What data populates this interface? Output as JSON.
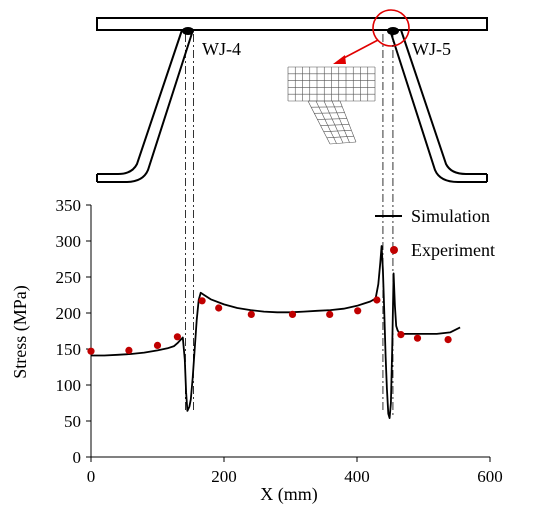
{
  "figure": {
    "welds": [
      {
        "id": "wj4",
        "label": "WJ-4",
        "x_mm": 142
      },
      {
        "id": "wj5",
        "label": "WJ-5",
        "x_mm": 439
      }
    ],
    "colors": {
      "line": "#000000",
      "experiment": "#c00000",
      "highlight": "#e00000",
      "structure": "#000000"
    }
  },
  "chart_data": {
    "type": "line",
    "xlabel": "X (mm)",
    "ylabel": "Stress (MPa)",
    "xlim": [
      0,
      600
    ],
    "ylim": [
      0,
      350
    ],
    "xticks": [
      "0",
      "200",
      "400",
      "600"
    ],
    "yticks": [
      "0",
      "50",
      "100",
      "150",
      "200",
      "250",
      "300",
      "350"
    ],
    "legend_position": "top-right",
    "grid": false,
    "series": [
      {
        "name": "Simulation",
        "style": "line",
        "x": [
          0,
          20,
          40,
          60,
          80,
          100,
          115,
          125,
          130,
          134,
          138,
          141,
          143,
          145,
          148,
          150,
          153,
          156,
          159,
          162,
          165,
          170,
          180,
          200,
          220,
          240,
          260,
          280,
          300,
          320,
          340,
          360,
          380,
          400,
          410,
          420,
          428,
          432,
          435,
          437,
          439,
          441,
          443,
          445,
          447,
          449,
          451,
          453,
          455,
          457,
          459,
          461,
          463,
          466,
          470,
          480,
          500,
          520,
          540,
          555
        ],
        "y": [
          141,
          141,
          142,
          143,
          145,
          148,
          151,
          154,
          158,
          162,
          166,
          135,
          90,
          64,
          70,
          80,
          110,
          150,
          190,
          218,
          228,
          225,
          219,
          212,
          207,
          204,
          202,
          201,
          201,
          202,
          203,
          204,
          206,
          210,
          213,
          216,
          220,
          240,
          270,
          293,
          260,
          200,
          140,
          95,
          60,
          54,
          75,
          150,
          255,
          210,
          182,
          176,
          173,
          172,
          171,
          171,
          171,
          171,
          173,
          180
        ]
      },
      {
        "name": "Experiment",
        "style": "marker",
        "x": [
          0,
          57,
          100,
          130,
          167,
          192,
          241,
          303,
          359,
          401,
          430,
          466,
          491,
          537
        ],
        "y": [
          147,
          148,
          155,
          167,
          217,
          207,
          198,
          198,
          198,
          203,
          218,
          170,
          165,
          163
        ]
      }
    ]
  }
}
